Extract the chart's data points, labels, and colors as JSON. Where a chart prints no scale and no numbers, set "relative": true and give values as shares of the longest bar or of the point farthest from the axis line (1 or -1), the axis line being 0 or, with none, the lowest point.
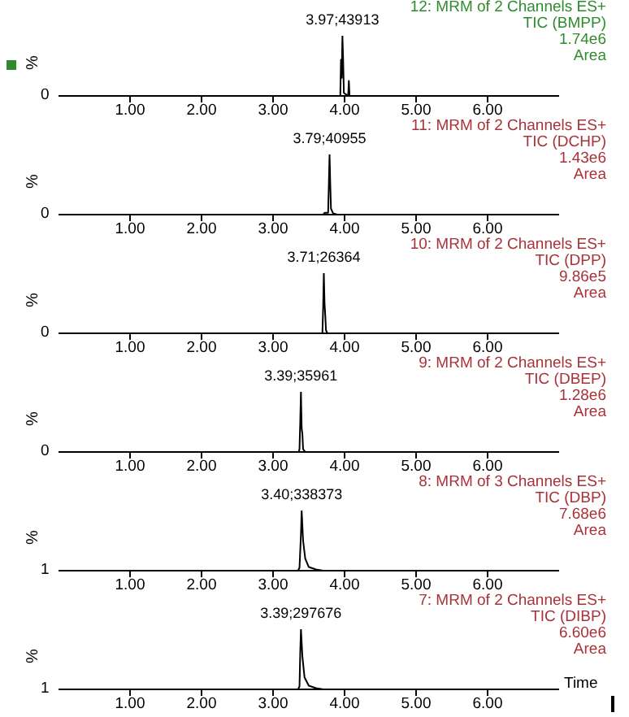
{
  "chart_data": [
    {
      "type": "line",
      "title": "12: MRM of 2 Channels ES+",
      "subtitle": "TIC (BMPP)",
      "ylabel": "%",
      "relative": true,
      "xlim": [
        0,
        7
      ],
      "xticks": [
        {
          "value": 1,
          "label": "1.00"
        },
        {
          "value": 2,
          "label": "2.00"
        },
        {
          "value": 3,
          "label": "3.00"
        },
        {
          "value": 4,
          "label": "4.00"
        },
        {
          "value": 5,
          "label": "5.00"
        },
        {
          "value": 6,
          "label": "6.00"
        }
      ],
      "grid": false,
      "legend": false,
      "marker": "none",
      "line_style": "solid",
      "annotations": [
        "1.74e6",
        "Area",
        "0",
        {
          "text": "3.97;43913",
          "x": 3.97,
          "y": 1
        }
      ],
      "series": [
        {
          "color": "#000000",
          "x": [
            0,
            3.94,
            3.95,
            3.96,
            3.97,
            3.98,
            3.99,
            4.05,
            4.06,
            4.07,
            7
          ],
          "values": [
            0,
            0,
            0.6,
            0.3,
            1,
            0.6,
            0.05,
            0,
            0.25,
            0,
            0
          ]
        }
      ]
    },
    {
      "type": "line",
      "title": "11: MRM of 2 Channels ES+",
      "subtitle": "TIC (DCHP)",
      "ylabel": "%",
      "relative": true,
      "xlim": [
        0,
        7
      ],
      "xticks": [
        {
          "value": 1,
          "label": "1.00"
        },
        {
          "value": 2,
          "label": "2.00"
        },
        {
          "value": 3,
          "label": "3.00"
        },
        {
          "value": 4,
          "label": "4.00"
        },
        {
          "value": 5,
          "label": "5.00"
        },
        {
          "value": 6,
          "label": "6.00"
        }
      ],
      "grid": false,
      "legend": false,
      "marker": "none",
      "line_style": "solid",
      "annotations": [
        "1.43e6",
        "Area",
        "0",
        {
          "text": "3.79;40955",
          "x": 3.79,
          "y": 1
        }
      ],
      "series": [
        {
          "color": "#000000",
          "x": [
            0,
            3.7,
            3.72,
            3.77,
            3.78,
            3.79,
            3.8,
            3.81,
            3.84,
            3.9,
            7
          ],
          "values": [
            0,
            0,
            0.03,
            0.03,
            0.5,
            1,
            0.5,
            0.1,
            0.02,
            0,
            0
          ]
        }
      ]
    },
    {
      "type": "line",
      "title": "10: MRM of 2 Channels ES+",
      "subtitle": "TIC (DPP)",
      "ylabel": "%",
      "relative": true,
      "xlim": [
        0,
        7
      ],
      "xticks": [
        {
          "value": 1,
          "label": "1.00"
        },
        {
          "value": 2,
          "label": "2.00"
        },
        {
          "value": 3,
          "label": "3.00"
        },
        {
          "value": 4,
          "label": "4.00"
        },
        {
          "value": 5,
          "label": "5.00"
        },
        {
          "value": 6,
          "label": "6.00"
        }
      ],
      "grid": false,
      "legend": false,
      "marker": "none",
      "line_style": "solid",
      "annotations": [
        "9.86e5",
        "Area",
        "0",
        {
          "text": "3.71;26364",
          "x": 3.71,
          "y": 1
        }
      ],
      "series": [
        {
          "color": "#000000",
          "x": [
            0,
            3.69,
            3.7,
            3.71,
            3.72,
            3.73,
            3.74,
            3.76,
            7
          ],
          "values": [
            0,
            0,
            0.4,
            1,
            0.5,
            0.3,
            0.05,
            0,
            0
          ]
        }
      ]
    },
    {
      "type": "line",
      "title": "9: MRM of 2 Channels ES+",
      "subtitle": "TIC (DBEP)",
      "ylabel": "%",
      "relative": true,
      "xlim": [
        0,
        7
      ],
      "xticks": [
        {
          "value": 1,
          "label": "1.00"
        },
        {
          "value": 2,
          "label": "2.00"
        },
        {
          "value": 3,
          "label": "3.00"
        },
        {
          "value": 4,
          "label": "4.00"
        },
        {
          "value": 5,
          "label": "5.00"
        },
        {
          "value": 6,
          "label": "6.00"
        }
      ],
      "grid": false,
      "legend": false,
      "marker": "none",
      "line_style": "solid",
      "annotations": [
        "1.28e6",
        "Area",
        "0",
        {
          "text": "3.39;35961",
          "x": 3.39,
          "y": 1
        }
      ],
      "series": [
        {
          "color": "#000000",
          "x": [
            0,
            3.36,
            3.37,
            3.38,
            3.39,
            3.4,
            3.41,
            3.42,
            3.45,
            7
          ],
          "values": [
            0,
            0,
            0.05,
            0.5,
            1,
            0.4,
            0.3,
            0.05,
            0,
            0
          ]
        }
      ]
    },
    {
      "type": "line",
      "title": "8: MRM of 3 Channels ES+",
      "subtitle": "TIC (DBP)",
      "ylabel": "%",
      "relative": true,
      "xlim": [
        0,
        7
      ],
      "xticks": [
        {
          "value": 1,
          "label": "1.00"
        },
        {
          "value": 2,
          "label": "2.00"
        },
        {
          "value": 3,
          "label": "3.00"
        },
        {
          "value": 4,
          "label": "4.00"
        },
        {
          "value": 5,
          "label": "5.00"
        },
        {
          "value": 6,
          "label": "6.00"
        }
      ],
      "grid": false,
      "legend": false,
      "marker": "none",
      "line_style": "solid",
      "annotations": [
        "7.68e6",
        "Area",
        "1",
        {
          "text": "3.40;338373",
          "x": 3.4,
          "y": 1
        }
      ],
      "series": [
        {
          "color": "#000000",
          "x": [
            0,
            3.35,
            3.37,
            3.39,
            3.4,
            3.42,
            3.45,
            3.5,
            3.6,
            3.7,
            7
          ],
          "values": [
            0,
            0,
            0.05,
            0.6,
            1,
            0.5,
            0.2,
            0.06,
            0.02,
            0,
            0
          ]
        }
      ]
    },
    {
      "type": "line",
      "title": "7: MRM of 2 Channels ES+",
      "subtitle": "TIC (DIBP)",
      "xlabel": "Time",
      "ylabel": "%",
      "relative": true,
      "xlim": [
        0,
        7
      ],
      "xticks": [
        {
          "value": 1,
          "label": "1.00"
        },
        {
          "value": 2,
          "label": "2.00"
        },
        {
          "value": 3,
          "label": "3.00"
        },
        {
          "value": 4,
          "label": "4.00"
        },
        {
          "value": 5,
          "label": "5.00"
        },
        {
          "value": 6,
          "label": "6.00"
        }
      ],
      "grid": false,
      "legend": false,
      "marker": "none",
      "line_style": "solid",
      "annotations": [
        "6.60e6",
        "Area",
        "1",
        {
          "text": "3.39;297676",
          "x": 3.39,
          "y": 1
        }
      ],
      "series": [
        {
          "color": "#000000",
          "x": [
            0,
            3.35,
            3.37,
            3.38,
            3.39,
            3.41,
            3.44,
            3.5,
            3.6,
            3.7,
            7
          ],
          "values": [
            0,
            0,
            0.05,
            0.6,
            1,
            0.55,
            0.2,
            0.06,
            0.02,
            0,
            0
          ]
        }
      ]
    }
  ]
}
